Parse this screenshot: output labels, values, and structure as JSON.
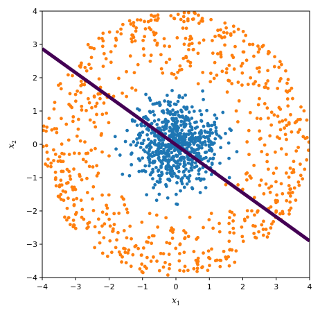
{
  "chart_data": {
    "type": "scatter",
    "title": "",
    "xlabel": "x",
    "xlabel_subscript": "1",
    "ylabel": "x",
    "ylabel_subscript": "2",
    "xlim": [
      -4,
      4
    ],
    "ylim": [
      -4,
      4
    ],
    "xticks": [
      -4,
      -3,
      -2,
      -1,
      0,
      1,
      2,
      3,
      4
    ],
    "yticks": [
      -4,
      -3,
      -2,
      -1,
      0,
      1,
      2,
      3,
      4
    ],
    "xtick_labels": [
      "−4",
      "−3",
      "−2",
      "−1",
      "0",
      "1",
      "2",
      "3",
      "4"
    ],
    "ytick_labels": [
      "−4",
      "−3",
      "−2",
      "−1",
      "0",
      "1",
      "2",
      "3",
      "4"
    ],
    "grid": false,
    "legend": "none",
    "series": [
      {
        "kind": "scatter",
        "color": "#1f77b4",
        "distribution": "inner cluster, radius 0 to ~1.9",
        "r_range": [
          0.0,
          1.9
        ],
        "count": 700,
        "seed": 11,
        "points": [
          [
            0.1,
            -0.1
          ],
          [
            -0.4,
            0.3
          ],
          [
            0.5,
            0.2
          ],
          [
            -0.2,
            -0.5
          ],
          [
            0.3,
            0.6
          ],
          [
            -0.8,
            -0.2
          ],
          [
            0.9,
            -0.4
          ],
          [
            1.2,
            0.5
          ],
          [
            -1.3,
            0.7
          ],
          [
            0.2,
            1.4
          ],
          [
            -0.5,
            -1.5
          ],
          [
            1.6,
            -1.0
          ],
          [
            -1.6,
            -0.9
          ],
          [
            0.8,
            1.6
          ],
          [
            -0.9,
            1.5
          ]
        ]
      },
      {
        "kind": "scatter",
        "color": "#ff7f0e",
        "distribution": "outer ring, radius ~1.9 to ~4",
        "r_range": [
          1.9,
          4.0
        ],
        "count": 700,
        "seed": 29,
        "points": [
          [
            -3.2,
            1.2
          ],
          [
            -2.6,
            2.4
          ],
          [
            -1.2,
            3.4
          ],
          [
            0.8,
            3.7
          ],
          [
            2.3,
            3.0
          ],
          [
            3.3,
            1.6
          ],
          [
            3.6,
            -0.2
          ],
          [
            3.0,
            -2.0
          ],
          [
            1.8,
            -3.2
          ],
          [
            0.1,
            -3.5
          ],
          [
            -1.8,
            -3.1
          ],
          [
            -3.0,
            -2.1
          ],
          [
            -3.6,
            -0.3
          ],
          [
            -2.2,
            0.9
          ],
          [
            2.5,
            0.4
          ]
        ]
      },
      {
        "kind": "line",
        "color": "#440154",
        "x": [
          -4,
          4
        ],
        "y": [
          2.87,
          -2.9
        ]
      }
    ]
  }
}
